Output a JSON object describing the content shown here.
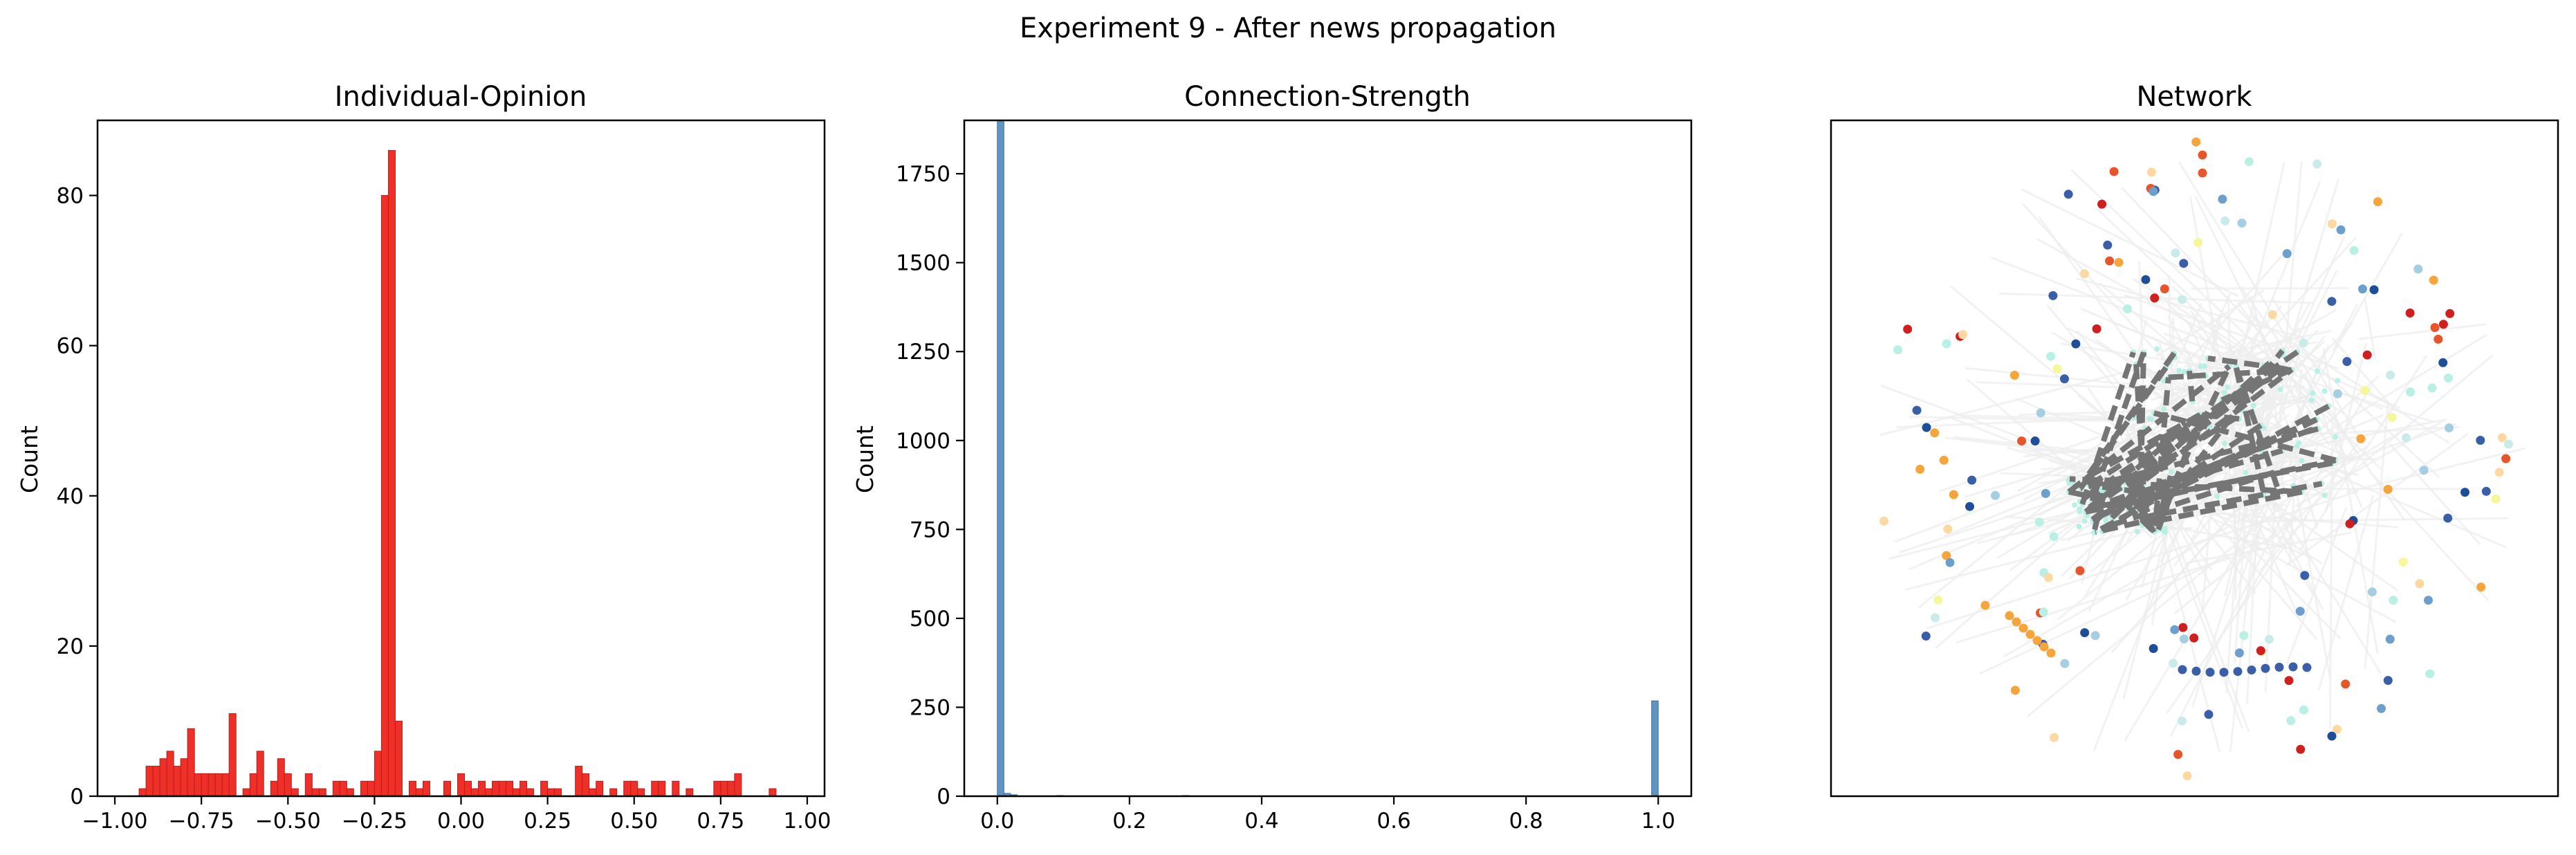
{
  "figure": {
    "suptitle": "Experiment 9 - After news propagation"
  },
  "panels": {
    "opinion": {
      "title": "Individual-Opinion",
      "ylabel": "Count"
    },
    "strength": {
      "title": "Connection-Strength",
      "ylabel": "Count"
    },
    "network": {
      "title": "Network"
    }
  },
  "chart_data": [
    {
      "type": "bar",
      "title": "Individual-Opinion",
      "xlabel": "",
      "ylabel": "Count",
      "xlim": [
        -1.05,
        1.05
      ],
      "ylim": [
        0,
        90
      ],
      "xticks": [
        -1.0,
        -0.75,
        -0.5,
        -0.25,
        0.0,
        0.25,
        0.5,
        0.75,
        1.0
      ],
      "xtick_labels": [
        "−1.00",
        "−0.75",
        "−0.50",
        "−0.25",
        "0.00",
        "0.25",
        "0.50",
        "0.75",
        "1.00"
      ],
      "yticks": [
        0,
        20,
        40,
        60,
        80
      ],
      "ytick_labels": [
        "0",
        "20",
        "40",
        "60",
        "80"
      ],
      "bin_width": 0.02,
      "bin_starts": [
        -0.93,
        -0.91,
        -0.89,
        -0.87,
        -0.85,
        -0.83,
        -0.81,
        -0.79,
        -0.77,
        -0.75,
        -0.73,
        -0.71,
        -0.69,
        -0.67,
        -0.63,
        -0.61,
        -0.59,
        -0.55,
        -0.53,
        -0.51,
        -0.49,
        -0.45,
        -0.43,
        -0.41,
        -0.37,
        -0.35,
        -0.33,
        -0.29,
        -0.27,
        -0.25,
        -0.23,
        -0.21,
        -0.19,
        -0.15,
        -0.13,
        -0.11,
        -0.05,
        -0.01,
        0.01,
        0.03,
        0.05,
        0.07,
        0.09,
        0.11,
        0.13,
        0.15,
        0.17,
        0.19,
        0.23,
        0.25,
        0.27,
        0.33,
        0.35,
        0.37,
        0.39,
        0.43,
        0.47,
        0.49,
        0.51,
        0.55,
        0.57,
        0.61,
        0.65,
        0.73,
        0.75,
        0.77,
        0.79,
        0.89
      ],
      "counts": [
        1,
        4,
        4,
        5,
        6,
        4,
        5,
        9,
        3,
        3,
        3,
        3,
        3,
        11,
        1,
        3,
        6,
        2,
        5,
        3,
        1,
        3,
        1,
        1,
        2,
        2,
        1,
        2,
        2,
        6,
        80,
        86,
        10,
        2,
        1,
        2,
        2,
        3,
        2,
        1,
        2,
        1,
        2,
        2,
        2,
        1,
        2,
        1,
        2,
        1,
        1,
        4,
        3,
        1,
        2,
        1,
        2,
        2,
        1,
        2,
        2,
        2,
        1,
        2,
        2,
        2,
        3,
        1
      ],
      "color": "#ee3028",
      "edge_color": "#b81d1d"
    },
    {
      "type": "bar",
      "title": "Connection-Strength",
      "xlabel": "",
      "ylabel": "Count",
      "xlim": [
        -0.05,
        1.05
      ],
      "ylim": [
        0,
        1900
      ],
      "xticks": [
        0.0,
        0.2,
        0.4,
        0.6,
        0.8,
        1.0
      ],
      "xtick_labels": [
        "0.0",
        "0.2",
        "0.4",
        "0.6",
        "0.8",
        "1.0"
      ],
      "yticks": [
        0,
        250,
        500,
        750,
        1000,
        1250,
        1500,
        1750
      ],
      "ytick_labels": [
        "0",
        "250",
        "500",
        "750",
        "1000",
        "1250",
        "1500",
        "1750"
      ],
      "bin_width": 0.01,
      "bin_starts": [
        0.0,
        0.01,
        0.02,
        0.09,
        0.28,
        0.99
      ],
      "counts": [
        1900,
        8,
        4,
        2,
        2,
        268
      ],
      "color": "#5f95c4",
      "edge_color": "#3e6e99"
    },
    {
      "type": "network",
      "title": "Network",
      "node_colors": [
        "#1f4e99",
        "#3a5fa8",
        "#6d9fcd",
        "#a6cee3",
        "#c9ecea",
        "#b8f0e6",
        "#f6f69a",
        "#fdd8a0",
        "#f5a53c",
        "#e8552a",
        "#cf1f1f"
      ],
      "core_edge_color": "#757575",
      "background_edge_color": "#eeeeee",
      "core_node_color": "#b8f0e6"
    }
  ]
}
